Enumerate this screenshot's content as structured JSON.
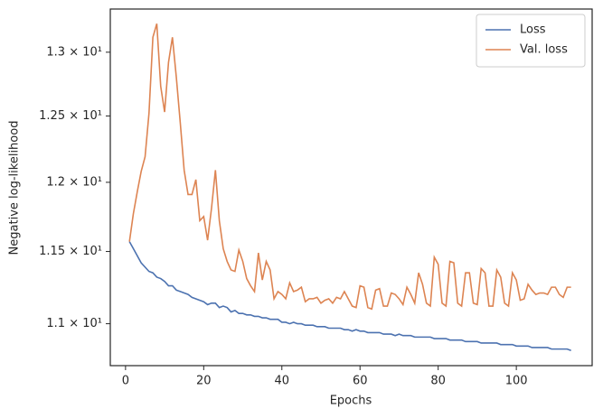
{
  "chart_data": {
    "type": "line",
    "xlabel": "Epochs",
    "ylabel": "Negative log-likelihood",
    "x": [
      1,
      2,
      3,
      4,
      5,
      6,
      7,
      8,
      9,
      10,
      11,
      12,
      13,
      14,
      15,
      16,
      17,
      18,
      19,
      20,
      21,
      22,
      23,
      24,
      25,
      26,
      27,
      28,
      29,
      30,
      31,
      32,
      33,
      34,
      35,
      36,
      37,
      38,
      39,
      40,
      41,
      42,
      43,
      44,
      45,
      46,
      47,
      48,
      49,
      50,
      51,
      52,
      53,
      54,
      55,
      56,
      57,
      58,
      59,
      60,
      61,
      62,
      63,
      64,
      65,
      66,
      67,
      68,
      69,
      70,
      71,
      72,
      73,
      74,
      75,
      76,
      77,
      78,
      79,
      80,
      81,
      82,
      83,
      84,
      85,
      86,
      87,
      88,
      89,
      90,
      91,
      92,
      93,
      94,
      95,
      96,
      97,
      98,
      99,
      100,
      101,
      102,
      103,
      104,
      105,
      106,
      107,
      108,
      109,
      110,
      111,
      112,
      113,
      114
    ],
    "series": [
      {
        "name": "Loss",
        "color": "#4c72b0",
        "values": [
          11.57,
          11.52,
          11.47,
          11.42,
          11.39,
          11.36,
          11.35,
          11.32,
          11.31,
          11.29,
          11.26,
          11.26,
          11.23,
          11.22,
          11.21,
          11.2,
          11.18,
          11.17,
          11.16,
          11.15,
          11.13,
          11.14,
          11.14,
          11.11,
          11.12,
          11.11,
          11.08,
          11.09,
          11.07,
          11.07,
          11.06,
          11.06,
          11.05,
          11.05,
          11.04,
          11.04,
          11.03,
          11.03,
          11.03,
          11.01,
          11.01,
          11.0,
          11.01,
          11.0,
          11.0,
          10.99,
          10.99,
          10.99,
          10.98,
          10.98,
          10.98,
          10.97,
          10.97,
          10.97,
          10.97,
          10.96,
          10.96,
          10.95,
          10.96,
          10.95,
          10.95,
          10.94,
          10.94,
          10.94,
          10.94,
          10.93,
          10.93,
          10.93,
          10.92,
          10.93,
          10.92,
          10.92,
          10.92,
          10.91,
          10.91,
          10.91,
          10.91,
          10.91,
          10.9,
          10.9,
          10.9,
          10.9,
          10.89,
          10.89,
          10.89,
          10.89,
          10.88,
          10.88,
          10.88,
          10.88,
          10.87,
          10.87,
          10.87,
          10.87,
          10.87,
          10.86,
          10.86,
          10.86,
          10.86,
          10.85,
          10.85,
          10.85,
          10.85,
          10.84,
          10.84,
          10.84,
          10.84,
          10.84,
          10.83,
          10.83,
          10.83,
          10.83,
          10.83,
          10.82
        ]
      },
      {
        "name": "Val. loss",
        "color": "#dd8452",
        "values": [
          11.57,
          11.77,
          11.93,
          12.08,
          12.19,
          12.52,
          13.12,
          13.23,
          12.73,
          12.53,
          12.92,
          13.12,
          12.8,
          12.45,
          12.09,
          11.91,
          11.91,
          12.02,
          11.72,
          11.75,
          11.58,
          11.81,
          12.09,
          11.72,
          11.52,
          11.43,
          11.37,
          11.36,
          11.51,
          11.43,
          11.31,
          11.26,
          11.22,
          11.49,
          11.3,
          11.43,
          11.37,
          11.17,
          11.22,
          11.2,
          11.17,
          11.28,
          11.22,
          11.23,
          11.25,
          11.15,
          11.17,
          11.17,
          11.18,
          11.14,
          11.16,
          11.17,
          11.14,
          11.18,
          11.17,
          11.22,
          11.17,
          11.12,
          11.11,
          11.26,
          11.25,
          11.11,
          11.1,
          11.23,
          11.24,
          11.12,
          11.12,
          11.21,
          11.2,
          11.17,
          11.13,
          11.25,
          11.2,
          11.14,
          11.35,
          11.27,
          11.14,
          11.12,
          11.46,
          11.41,
          11.14,
          11.12,
          11.43,
          11.42,
          11.14,
          11.12,
          11.35,
          11.35,
          11.14,
          11.13,
          11.38,
          11.35,
          11.12,
          11.12,
          11.37,
          11.32,
          11.14,
          11.12,
          11.35,
          11.3,
          11.16,
          11.17,
          11.27,
          11.23,
          11.2,
          11.21,
          11.21,
          11.2,
          11.25,
          11.25,
          11.2,
          11.18,
          11.25,
          11.25
        ]
      }
    ],
    "xlim": [
      -3.9,
      119.4
    ],
    "xticks": [
      0,
      20,
      40,
      60,
      80,
      100
    ],
    "ylim": [
      10.72,
      13.35
    ],
    "yscale": "log",
    "yticks": [
      {
        "value": 11,
        "label": "1.1 × 10¹"
      },
      {
        "value": 11.5,
        "label": "1.15 × 10¹"
      },
      {
        "value": 12,
        "label": "1.2 × 10¹"
      },
      {
        "value": 12.5,
        "label": "1.25 × 10¹"
      },
      {
        "value": 13,
        "label": "1.3 × 10¹"
      }
    ],
    "legend": "upper right"
  }
}
